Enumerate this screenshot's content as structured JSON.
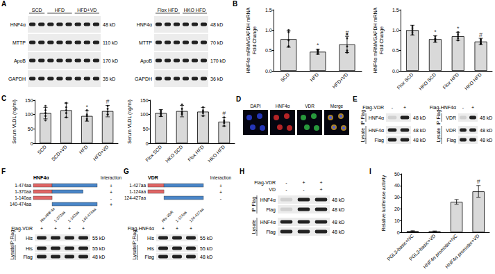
{
  "panel_labels": [
    "A",
    "B",
    "C",
    "D",
    "E",
    "F",
    "G",
    "H",
    "I"
  ],
  "chart_data": [
    {
      "type": "bar",
      "y_label": "HNF4α mRNA/GAPDH mRNA\nFold Change",
      "categories": [
        "SCD",
        "HFD",
        "HFD+VD"
      ],
      "values": [
        0.78,
        0.47,
        0.65
      ],
      "errors": [
        0.2,
        0.06,
        0.2
      ],
      "points": [
        [
          1.0,
          0.95,
          0.75,
          0.6,
          0.6
        ],
        [
          0.42,
          0.45,
          0.48,
          0.5,
          0.52
        ],
        [
          0.9,
          0.8,
          0.6,
          0.5,
          0.45
        ]
      ],
      "annotations": [
        {
          "category": "HFD",
          "text": "*"
        },
        {
          "category": "HFD+VD",
          "text": "#"
        }
      ],
      "ylim": [
        0,
        1.5
      ],
      "yticks": [
        {
          "value": 0,
          "label": "0.0"
        },
        0.5,
        {
          "value": 1,
          "label": "1.0"
        },
        1.5
      ],
      "color": "#d9d9d9",
      "grid": false
    },
    {
      "type": "bar",
      "y_label": "HNF4α mRNA/GAPDH mRNA\nFold Change",
      "categories": [
        "Flox SCD",
        "HKO SCD",
        "Flox HFD",
        "HKO HFD"
      ],
      "values": [
        1.0,
        0.78,
        0.85,
        0.72
      ],
      "errors": [
        0.12,
        0.08,
        0.1,
        0.08
      ],
      "points": [
        [
          1.1,
          1.05,
          1.0,
          0.95,
          0.9
        ],
        [
          0.85,
          0.8,
          0.78,
          0.75,
          0.72
        ],
        [
          0.95,
          0.9,
          0.85,
          0.8,
          0.75
        ],
        [
          0.78,
          0.75,
          0.72,
          0.68,
          0.67
        ]
      ],
      "annotations": [
        {
          "category": "HKO SCD",
          "text": "*"
        },
        {
          "category": "Flox HFD",
          "text": "*"
        },
        {
          "category": "HKO HFD",
          "text": "#"
        }
      ],
      "ylim": [
        0,
        1.5
      ],
      "yticks": [
        {
          "value": 0,
          "label": "0.0"
        },
        0.5,
        {
          "value": 1,
          "label": "1.0"
        },
        1.5
      ],
      "color": "#d9d9d9",
      "grid": false
    },
    {
      "type": "bar",
      "y_label": "Serum VLDL (ng/ml)",
      "categories": [
        "SCD",
        "SCD+VD",
        "HFD",
        "HFD+VD"
      ],
      "values": [
        105,
        115,
        95,
        112
      ],
      "errors": [
        20,
        25,
        18,
        20
      ],
      "points": [
        [
          130,
          115,
          105,
          95,
          80
        ],
        [
          140,
          125,
          115,
          105,
          90
        ],
        [
          115,
          100,
          95,
          85,
          80
        ],
        [
          130,
          120,
          110,
          100,
          100
        ]
      ],
      "annotations": [
        {
          "category": "HFD",
          "text": "*"
        },
        {
          "category": "HFD+VD",
          "text": "#"
        }
      ],
      "ylim": [
        0,
        150
      ],
      "yticks": [
        0,
        50,
        100,
        150
      ],
      "color": "#d9d9d9",
      "grid": false
    },
    {
      "type": "bar",
      "y_label": "Serum VLDL (ng/ml)",
      "categories": [
        "Flox SCD",
        "HKO SCD",
        "Flox HFD",
        "HKO HFD"
      ],
      "values": [
        105,
        112,
        110,
        75
      ],
      "errors": [
        12,
        20,
        15,
        15
      ],
      "points": [
        [
          115,
          110,
          105,
          100,
          95
        ],
        [
          135,
          120,
          110,
          105,
          100
        ],
        [
          125,
          115,
          110,
          105,
          95
        ],
        [
          90,
          80,
          75,
          70,
          60
        ]
      ],
      "annotations": [
        {
          "category": "HKO HFD",
          "text": "#"
        }
      ],
      "ylim": [
        0,
        150
      ],
      "yticks": [
        0,
        50,
        100,
        150
      ],
      "color": "#d9d9d9",
      "grid": false
    },
    {
      "type": "bar",
      "y_label": "Relative luciferase activity",
      "categories": [
        "PGL3-basic+NC",
        "PGL3-basic+VD",
        "HNF4α promoter+NC",
        "HNF4α promoter+VD"
      ],
      "values": [
        1,
        0.8,
        26,
        35
      ],
      "errors": [
        0.3,
        0.3,
        2,
        5
      ],
      "annotations": [
        {
          "category": "HNF4α promoter+VD",
          "text": "#"
        }
      ],
      "ylim": [
        0,
        50
      ],
      "yticks": [
        0,
        10,
        20,
        30,
        40,
        50
      ],
      "color": "#d9d9d9",
      "grid": false
    }
  ],
  "blots": {
    "A_left": {
      "groups": [
        {
          "label": "SCD",
          "lanes": 2
        },
        {
          "label": "HFD",
          "lanes": 3
        },
        {
          "label": "HFD+VD",
          "lanes": 3
        }
      ],
      "sections": [
        {
          "rows": [
            {
              "label": "HNF4α",
              "kd": "48 kD"
            },
            {
              "label": "MTTP",
              "kd": "110 kD"
            },
            {
              "label": "ApoB",
              "kd": "170 kD"
            },
            {
              "label": "GAPDH",
              "kd": "35 kD"
            }
          ]
        }
      ]
    },
    "A_right": {
      "groups": [
        {
          "label": "Flox HFD",
          "lanes": 3
        },
        {
          "label": "HKO HFD",
          "lanes": 3
        }
      ],
      "sections": [
        {
          "rows": [
            {
              "label": "HNF4α",
              "kd": "48 kD"
            },
            {
              "label": "MTTP",
              "kd": "70 kD"
            },
            {
              "label": "ApoB",
              "kd": "170 kD"
            },
            {
              "label": "GAPDH",
              "kd": "36 kD"
            }
          ]
        }
      ]
    },
    "E_left": {
      "conditions": [
        {
          "label": "Flag-VDR",
          "signs": [
            "-",
            "+"
          ]
        }
      ],
      "sections": [
        {
          "label": "IP:Flag",
          "rows": [
            {
              "label": "HNF4α",
              "kd": "48 kD"
            }
          ]
        },
        {
          "label": "Lysate",
          "rows": [
            {
              "label": "HNF4α",
              "kd": "48 kD"
            },
            {
              "label": "Flag",
              "kd": "48 kD"
            }
          ]
        }
      ]
    },
    "E_right": {
      "conditions": [
        {
          "label": "Flag-HNF4α",
          "signs": [
            "-",
            "+"
          ]
        }
      ],
      "sections": [
        {
          "label": "IP:Flag",
          "rows": [
            {
              "label": "VDR",
              "kd": "48 kD"
            }
          ]
        },
        {
          "label": "Lysate",
          "rows": [
            {
              "label": "VDR",
              "kd": "48 kD"
            },
            {
              "label": "Flag",
              "kd": "48 kD"
            }
          ]
        }
      ]
    },
    "F": {
      "lane_labels": [
        "His-HNF4α",
        "1-370aa",
        "1-140aa",
        "140-474aa"
      ],
      "conditions": [
        {
          "label": "Flag-VDR",
          "signs": [
            "+",
            "+",
            "+",
            "+"
          ]
        }
      ],
      "sections": [
        {
          "label": "IP:Flag",
          "rows": [
            {
              "label": "His",
              "kd": "55 kD"
            }
          ]
        },
        {
          "label": "Lysate",
          "rows": [
            {
              "label": "His",
              "kd": "55 kD"
            },
            {
              "label": "Flag",
              "kd": "48 kD"
            }
          ]
        }
      ]
    },
    "G": {
      "lane_labels": [
        "His-VDR",
        "1-124aa",
        "124-427aa"
      ],
      "conditions": [
        {
          "label": "Flag-HNF4α",
          "signs": [
            "+",
            "+",
            "+"
          ]
        }
      ],
      "sections": [
        {
          "label": "IP:Flag",
          "rows": [
            {
              "label": "His",
              "kd": "55 kD"
            }
          ]
        },
        {
          "label": "Lysate",
          "rows": [
            {
              "label": "His",
              "kd": "55 kD"
            },
            {
              "label": "Flag",
              "kd": "48 kD"
            }
          ]
        }
      ]
    },
    "H": {
      "conditions": [
        {
          "label": "Flag-VDR",
          "signs": [
            "-",
            "+",
            "+"
          ]
        },
        {
          "label": "VD",
          "signs": [
            "-",
            "-",
            "+"
          ]
        }
      ],
      "sections": [
        {
          "label": "IP:Flag",
          "rows": [
            {
              "label": "HNF4α",
              "kd": "48 kD"
            },
            {
              "label": "Flag",
              "kd": "48 kD"
            }
          ]
        },
        {
          "label": "Lysate",
          "rows": [
            {
              "label": "HNF4α",
              "kd": "48 kD"
            },
            {
              "label": "Flag",
              "kd": "48 kD"
            }
          ]
        }
      ]
    }
  },
  "microscopy": {
    "channels": [
      "DAPI",
      "HNF4α",
      "VDR",
      "Merge"
    ]
  },
  "diagrams": {
    "F": {
      "protein": "HNF4α",
      "header": "Interaction",
      "constructs": [
        {
          "label": "1-474aa",
          "segments": [
            {
              "start": 1,
              "end": 140,
              "color": "#e06666"
            },
            {
              "start": 140,
              "end": 474,
              "color": "#4a86c8"
            }
          ],
          "interaction": "+"
        },
        {
          "label": "1-370aa",
          "segments": [
            {
              "start": 1,
              "end": 140,
              "color": "#e06666"
            },
            {
              "start": 140,
              "end": 370,
              "color": "#4a86c8"
            }
          ],
          "interaction": "+"
        },
        {
          "label": "1-140aa",
          "segments": [
            {
              "start": 1,
              "end": 140,
              "color": "#e06666"
            }
          ],
          "interaction": "-"
        },
        {
          "label": "140-474aa",
          "segments": [
            {
              "start": 140,
              "end": 474,
              "color": "#4a86c8"
            }
          ],
          "interaction": "+"
        }
      ]
    },
    "G": {
      "protein": "VDR",
      "header": "Interaction",
      "constructs": [
        {
          "label": "1-427aa",
          "segments": [
            {
              "start": 1,
              "end": 124,
              "color": "#e06666"
            },
            {
              "start": 124,
              "end": 427,
              "color": "#4a86c8"
            }
          ],
          "interaction": "+"
        },
        {
          "label": "1-124aa",
          "segments": [
            {
              "start": 1,
              "end": 124,
              "color": "#e06666"
            }
          ],
          "interaction": "+"
        },
        {
          "label": "124-427aa",
          "segments": [
            {
              "start": 124,
              "end": 427,
              "color": "#4a86c8"
            }
          ],
          "interaction": "-"
        }
      ]
    }
  }
}
